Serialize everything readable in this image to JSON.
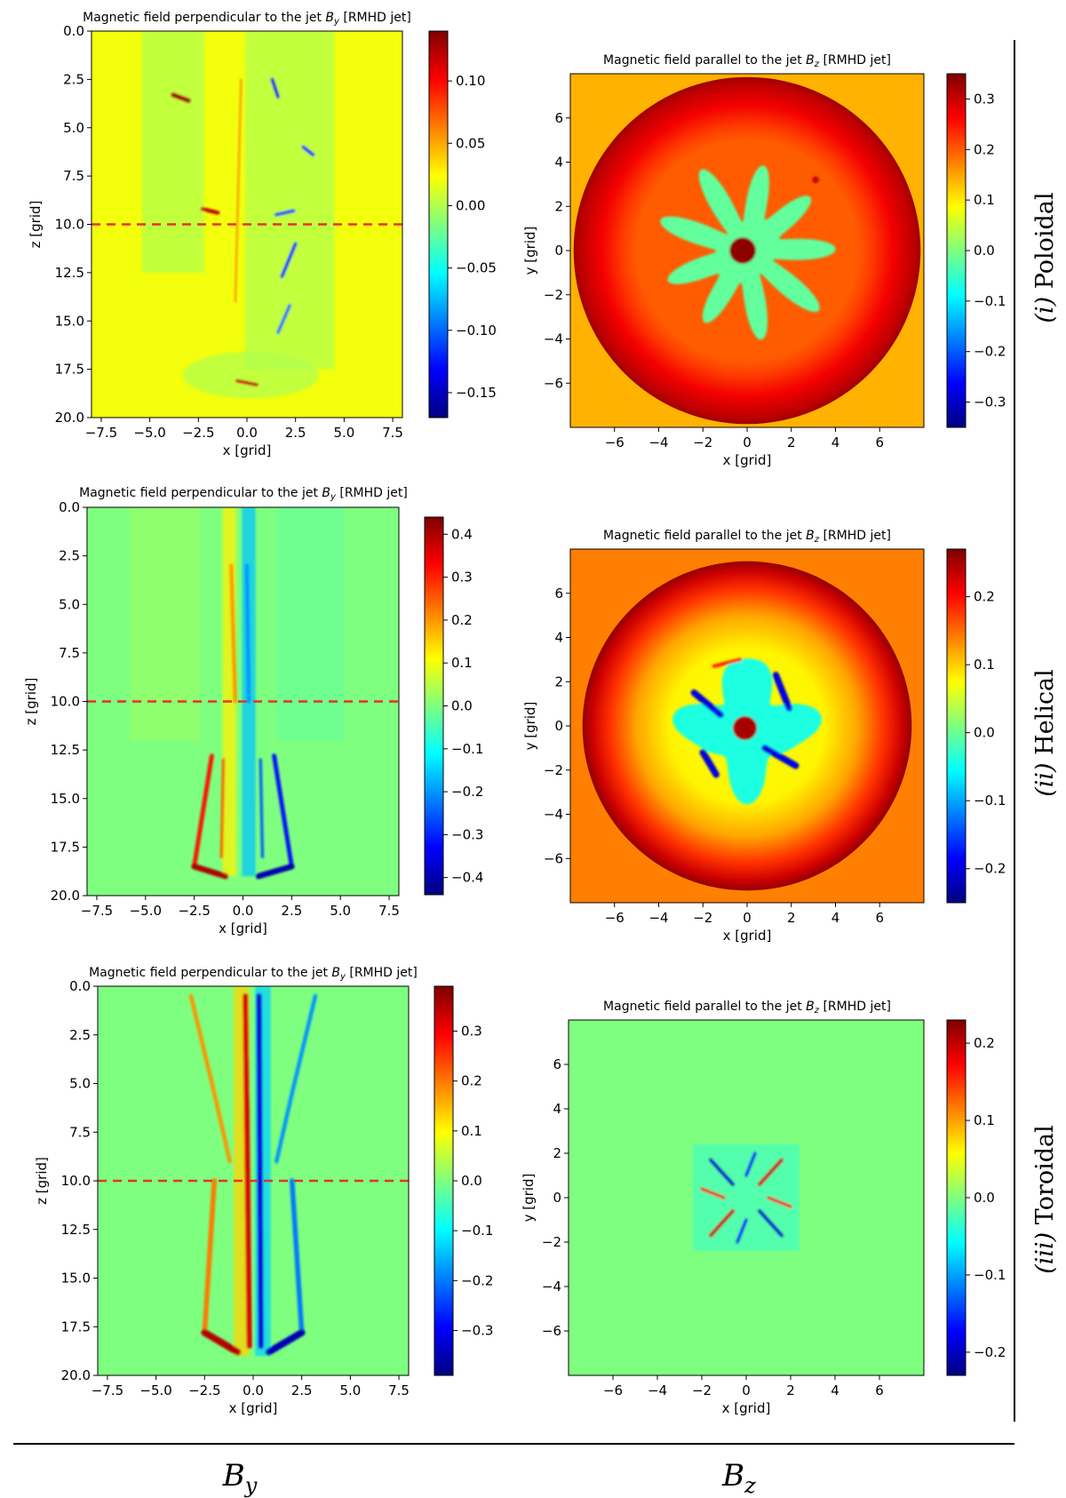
{
  "colors": {
    "jet": [
      "#00007f",
      "#0000ff",
      "#007fff",
      "#00ffff",
      "#7fff7f",
      "#ffff00",
      "#ff7f00",
      "#ff0000",
      "#7f0000"
    ],
    "cut_line": "#e8302a"
  },
  "row_labels": [
    {
      "numeral": "(i)",
      "name": " Poloidal"
    },
    {
      "numeral": "(ii)",
      "name": " Helical"
    },
    {
      "numeral": "(iii)",
      "name": " Toroidal"
    }
  ],
  "column_labels": {
    "by": {
      "main": "B",
      "sub": "y"
    },
    "bz": {
      "main": "B",
      "sub": "z"
    }
  },
  "chart_data": [
    {
      "id": "by-poloidal",
      "type": "heatmap",
      "title_prefix": "Magnetic field perpendicular to the jet ",
      "title_var": "B",
      "title_sub": "y",
      "title_suffix": " [RMHD jet]",
      "xlabel": "x [grid]",
      "ylabel": "z [grid]",
      "xlim": [
        -8,
        8
      ],
      "ylim": [
        0,
        20
      ],
      "y_inverted": true,
      "xticks": [
        "−7.5",
        "−5.0",
        "−2.5",
        "0.0",
        "2.5",
        "5.0",
        "7.5"
      ],
      "xtick_values": [
        -7.5,
        -5.0,
        -2.5,
        0.0,
        2.5,
        5.0,
        7.5
      ],
      "yticks": [
        "0.0",
        "2.5",
        "5.0",
        "7.5",
        "10.0",
        "12.5",
        "15.0",
        "17.5",
        "20.0"
      ],
      "ytick_values": [
        0,
        2.5,
        5,
        7.5,
        10,
        12.5,
        15,
        17.5,
        20
      ],
      "cut_z": 10.0,
      "colorbar": {
        "min": -0.17,
        "max": 0.14,
        "ticks": [
          "0.10",
          "0.05",
          "0.00",
          "−0.05",
          "−0.10",
          "−0.15"
        ],
        "tick_values": [
          0.1,
          0.05,
          0.0,
          -0.05,
          -0.1,
          -0.15
        ]
      },
      "background_value": 0.02,
      "features": [
        {
          "shape": "band",
          "x_center": -3.8,
          "x_width": 3.2,
          "z_start": 0,
          "z_end": 12.5,
          "value": 0.0
        },
        {
          "shape": "band",
          "x_center": 2.2,
          "x_width": 4.6,
          "z_start": 0,
          "z_end": 17.5,
          "value": 0.0
        },
        {
          "shape": "ellipse",
          "x": 0.2,
          "z": 17.8,
          "rx": 3.5,
          "rz": 1.2,
          "value": 0.0
        },
        {
          "shape": "streak",
          "x1": -3.8,
          "z1": 3.3,
          "x2": -3.0,
          "z2": 3.6,
          "width": 0.25,
          "value": 0.13
        },
        {
          "shape": "streak",
          "x1": 1.3,
          "z1": 2.5,
          "x2": 1.6,
          "z2": 3.4,
          "width": 0.18,
          "value": -0.14
        },
        {
          "shape": "streak",
          "x1": 2.9,
          "z1": 6.0,
          "x2": 3.4,
          "z2": 6.4,
          "width": 0.18,
          "value": -0.12
        },
        {
          "shape": "streak",
          "x1": -2.3,
          "z1": 9.2,
          "x2": -1.5,
          "z2": 9.4,
          "width": 0.2,
          "value": 0.12
        },
        {
          "shape": "streak",
          "x1": 1.5,
          "z1": 9.5,
          "x2": 2.4,
          "z2": 9.3,
          "width": 0.18,
          "value": -0.11
        },
        {
          "shape": "streak",
          "x1": 2.5,
          "z1": 11.0,
          "x2": 1.8,
          "z2": 12.7,
          "width": 0.18,
          "value": -0.12
        },
        {
          "shape": "streak",
          "x1": 2.2,
          "z1": 14.2,
          "x2": 1.6,
          "z2": 15.6,
          "width": 0.16,
          "value": -0.1
        },
        {
          "shape": "streak",
          "x1": -0.5,
          "z1": 18.1,
          "x2": 0.5,
          "z2": 18.3,
          "width": 0.18,
          "value": 0.12
        },
        {
          "shape": "streak",
          "x1": -0.3,
          "z1": 2.5,
          "x2": -0.6,
          "z2": 14.0,
          "width": 0.08,
          "value": 0.06
        }
      ]
    },
    {
      "id": "bz-poloidal",
      "type": "heatmap",
      "title_prefix": "Magnetic field parallel to the jet ",
      "title_var": "B",
      "title_sub": "z",
      "title_suffix": " [RMHD jet]",
      "xlabel": "x [grid]",
      "ylabel": "y [grid]",
      "xlim": [
        -8,
        8
      ],
      "ylim": [
        -8,
        8
      ],
      "y_inverted": false,
      "xticks": [
        "−6",
        "−4",
        "−2",
        "0",
        "2",
        "4",
        "6"
      ],
      "xtick_values": [
        -6,
        -4,
        -2,
        0,
        2,
        4,
        6
      ],
      "yticks": [
        "6",
        "4",
        "2",
        "0",
        "−2",
        "−4",
        "−6"
      ],
      "ytick_values": [
        6,
        4,
        2,
        0,
        -2,
        -4,
        -6
      ],
      "colorbar": {
        "min": -0.35,
        "max": 0.35,
        "ticks": [
          "0.3",
          "0.2",
          "0.1",
          "0.0",
          "−0.1",
          "−0.2",
          "−0.3"
        ],
        "tick_values": [
          0.3,
          0.2,
          0.1,
          0.0,
          -0.1,
          -0.2,
          -0.3
        ]
      },
      "background_value": 0.14,
      "radial_profile": [
        {
          "r": 0.0,
          "value": 0.2
        },
        {
          "r": 5.0,
          "value": 0.2
        },
        {
          "r": 5.6,
          "value": 0.22
        },
        {
          "r": 6.6,
          "value": 0.27
        },
        {
          "r": 7.6,
          "value": 0.31
        },
        {
          "r": 7.85,
          "value": 0.33
        }
      ],
      "features": [
        {
          "shape": "lobed",
          "x": 0.0,
          "y": 0.0,
          "r": 4.0,
          "lobes": 9,
          "amp": 0.65,
          "value": -0.02
        },
        {
          "shape": "circle",
          "x": -0.2,
          "y": 0.0,
          "r": 0.6,
          "value": 0.34
        },
        {
          "shape": "circle",
          "x": 3.1,
          "y": 3.2,
          "r": 0.15,
          "value": 0.3
        }
      ]
    },
    {
      "id": "by-helical",
      "type": "heatmap",
      "title_prefix": "Magnetic field perpendicular to the jet ",
      "title_var": "B",
      "title_sub": "y",
      "title_suffix": " [RMHD jet]",
      "xlabel": "x [grid]",
      "ylabel": "z [grid]",
      "xlim": [
        -8,
        8
      ],
      "ylim": [
        0,
        20
      ],
      "y_inverted": true,
      "xticks": [
        "−7.5",
        "−5.0",
        "−2.5",
        "0.0",
        "2.5",
        "5.0",
        "7.5"
      ],
      "xtick_values": [
        -7.5,
        -5.0,
        -2.5,
        0.0,
        2.5,
        5.0,
        7.5
      ],
      "yticks": [
        "0.0",
        "2.5",
        "5.0",
        "7.5",
        "10.0",
        "12.5",
        "15.0",
        "17.5",
        "20.0"
      ],
      "ytick_values": [
        0,
        2.5,
        5,
        7.5,
        10,
        12.5,
        15,
        17.5,
        20
      ],
      "cut_z": 10.0,
      "colorbar": {
        "min": -0.44,
        "max": 0.44,
        "ticks": [
          "0.4",
          "0.3",
          "0.2",
          "0.1",
          "0.0",
          "−0.1",
          "−0.2",
          "−0.3",
          "−0.4"
        ],
        "tick_values": [
          0.4,
          0.3,
          0.2,
          0.1,
          0.0,
          -0.1,
          -0.2,
          -0.3,
          -0.4
        ]
      },
      "background_value": 0.0,
      "features": [
        {
          "shape": "band",
          "x_center": -4.0,
          "x_width": 3.5,
          "z_start": 0,
          "z_end": 12.0,
          "value": 0.02
        },
        {
          "shape": "band",
          "x_center": 3.5,
          "x_width": 3.5,
          "z_start": 0,
          "z_end": 12.0,
          "value": -0.02
        },
        {
          "shape": "band",
          "x_center": -0.7,
          "x_width": 0.7,
          "z_start": 0,
          "z_end": 19.0,
          "value": 0.12
        },
        {
          "shape": "band",
          "x_center": 0.3,
          "x_width": 0.7,
          "z_start": 0,
          "z_end": 19.0,
          "value": -0.16
        },
        {
          "shape": "streak",
          "x1": -0.6,
          "z1": 3.0,
          "x2": -0.4,
          "z2": 10.0,
          "width": 0.2,
          "value": 0.2
        },
        {
          "shape": "streak",
          "x1": 0.2,
          "z1": 3.0,
          "x2": 0.3,
          "z2": 10.0,
          "width": 0.2,
          "value": -0.2
        },
        {
          "shape": "streak",
          "x1": -1.6,
          "z1": 12.8,
          "x2": -2.5,
          "z2": 18.5,
          "width": 0.22,
          "value": 0.32
        },
        {
          "shape": "streak",
          "x1": -2.5,
          "z1": 18.5,
          "x2": -0.9,
          "z2": 19.0,
          "width": 0.3,
          "value": 0.4
        },
        {
          "shape": "streak",
          "x1": -1.0,
          "z1": 13.0,
          "x2": -1.1,
          "z2": 18.0,
          "width": 0.15,
          "value": 0.25
        },
        {
          "shape": "streak",
          "x1": 1.6,
          "z1": 12.8,
          "x2": 2.5,
          "z2": 18.5,
          "width": 0.22,
          "value": -0.32
        },
        {
          "shape": "streak",
          "x1": 2.5,
          "z1": 18.5,
          "x2": 0.8,
          "z2": 19.0,
          "width": 0.3,
          "value": -0.4
        },
        {
          "shape": "streak",
          "x1": 0.9,
          "z1": 13.0,
          "x2": 1.0,
          "z2": 18.0,
          "width": 0.15,
          "value": -0.25
        }
      ]
    },
    {
      "id": "bz-helical",
      "type": "heatmap",
      "title_prefix": "Magnetic field parallel to the jet ",
      "title_var": "B",
      "title_sub": "z",
      "title_suffix": " [RMHD jet]",
      "xlabel": "x [grid]",
      "ylabel": "y [grid]",
      "xlim": [
        -8,
        8
      ],
      "ylim": [
        -8,
        8
      ],
      "y_inverted": false,
      "xticks": [
        "−6",
        "−4",
        "−2",
        "0",
        "2",
        "4",
        "6"
      ],
      "xtick_values": [
        -6,
        -4,
        -2,
        0,
        2,
        4,
        6
      ],
      "yticks": [
        "6",
        "4",
        "2",
        "0",
        "−2",
        "−4",
        "−6"
      ],
      "ytick_values": [
        6,
        4,
        2,
        0,
        -2,
        -4,
        -6
      ],
      "colorbar": {
        "min": -0.25,
        "max": 0.27,
        "ticks": [
          "0.2",
          "0.1",
          "0.0",
          "−0.1",
          "−0.2"
        ],
        "tick_values": [
          0.2,
          0.1,
          0.0,
          -0.1,
          -0.2
        ]
      },
      "background_value": 0.14,
      "radial_profile": [
        {
          "r": 0.0,
          "value": 0.07
        },
        {
          "r": 3.5,
          "value": 0.08
        },
        {
          "r": 5.0,
          "value": 0.12
        },
        {
          "r": 6.2,
          "value": 0.18
        },
        {
          "r": 7.0,
          "value": 0.23
        },
        {
          "r": 7.45,
          "value": 0.26
        }
      ],
      "features": [
        {
          "shape": "lobed",
          "x": 0.0,
          "y": 0.0,
          "r": 3.3,
          "lobes": 4,
          "amp": 0.5,
          "value": -0.04
        },
        {
          "shape": "streak",
          "x1": -2.4,
          "y1": 1.5,
          "x2": -1.2,
          "y2": 0.5,
          "width": 0.3,
          "value": -0.2
        },
        {
          "shape": "streak",
          "x1": 1.3,
          "y1": 2.3,
          "x2": 1.9,
          "y2": 0.8,
          "width": 0.3,
          "value": -0.2
        },
        {
          "shape": "streak",
          "x1": 0.8,
          "y1": -1.0,
          "x2": 2.2,
          "y2": -1.8,
          "width": 0.3,
          "value": -0.2
        },
        {
          "shape": "streak",
          "x1": -2.0,
          "y1": -1.2,
          "x2": -1.4,
          "y2": -2.2,
          "width": 0.3,
          "value": -0.2
        },
        {
          "shape": "streak",
          "x1": -1.5,
          "y1": 2.7,
          "x2": -0.3,
          "y2": 3.0,
          "width": 0.15,
          "value": 0.2
        },
        {
          "shape": "circle",
          "x": -0.1,
          "y": -0.1,
          "r": 0.55,
          "value": 0.25
        }
      ]
    },
    {
      "id": "by-toroidal",
      "type": "heatmap",
      "title_prefix": "Magnetic field perpendicular to the jet ",
      "title_var": "B",
      "title_sub": "y",
      "title_suffix": " [RMHD jet]",
      "xlabel": "x [grid]",
      "ylabel": "z [grid]",
      "xlim": [
        -8,
        8
      ],
      "ylim": [
        0,
        20
      ],
      "y_inverted": true,
      "xticks": [
        "−7.5",
        "−5.0",
        "−2.5",
        "0.0",
        "2.5",
        "5.0",
        "7.5"
      ],
      "xtick_values": [
        -7.5,
        -5.0,
        -2.5,
        0.0,
        2.5,
        5.0,
        7.5
      ],
      "yticks": [
        "0.0",
        "2.5",
        "5.0",
        "7.5",
        "10.0",
        "12.5",
        "15.0",
        "17.5",
        "20.0"
      ],
      "ytick_values": [
        0,
        2.5,
        5,
        7.5,
        10,
        12.5,
        15,
        17.5,
        20
      ],
      "cut_z": 10.0,
      "colorbar": {
        "min": -0.39,
        "max": 0.39,
        "ticks": [
          "0.3",
          "0.2",
          "0.1",
          "0.0",
          "−0.1",
          "−0.2",
          "−0.3"
        ],
        "tick_values": [
          0.3,
          0.2,
          0.1,
          0.0,
          -0.1,
          -0.2,
          -0.3
        ]
      },
      "background_value": 0.0,
      "features": [
        {
          "shape": "band",
          "x_center": -0.6,
          "x_width": 0.8,
          "z_start": 0,
          "z_end": 19.0,
          "value": 0.13
        },
        {
          "shape": "band",
          "x_center": 0.5,
          "x_width": 0.8,
          "z_start": 0,
          "z_end": 19.0,
          "value": -0.13
        },
        {
          "shape": "streak",
          "x1": -0.4,
          "z1": 0.5,
          "x2": -0.2,
          "z2": 18.5,
          "width": 0.28,
          "value": 0.32
        },
        {
          "shape": "streak",
          "x1": 0.3,
          "z1": 0.5,
          "x2": 0.4,
          "z2": 18.5,
          "width": 0.28,
          "value": -0.32
        },
        {
          "shape": "streak",
          "x1": -3.2,
          "z1": 0.5,
          "x2": -2.0,
          "z2": 5.5,
          "width": 0.2,
          "value": 0.18
        },
        {
          "shape": "streak",
          "x1": -2.0,
          "z1": 5.5,
          "x2": -1.2,
          "z2": 9.0,
          "width": 0.2,
          "value": 0.18
        },
        {
          "shape": "streak",
          "x1": -2.0,
          "z1": 10.0,
          "x2": -2.5,
          "z2": 17.8,
          "width": 0.25,
          "value": 0.2
        },
        {
          "shape": "streak",
          "x1": -2.5,
          "z1": 17.8,
          "x2": -0.8,
          "z2": 18.8,
          "width": 0.35,
          "value": 0.35
        },
        {
          "shape": "streak",
          "x1": 3.2,
          "z1": 0.5,
          "x2": 2.0,
          "z2": 5.5,
          "width": 0.2,
          "value": -0.18
        },
        {
          "shape": "streak",
          "x1": 2.0,
          "z1": 5.5,
          "x2": 1.2,
          "z2": 9.0,
          "width": 0.2,
          "value": -0.18
        },
        {
          "shape": "streak",
          "x1": 2.0,
          "z1": 10.0,
          "x2": 2.5,
          "z2": 17.8,
          "width": 0.25,
          "value": -0.2
        },
        {
          "shape": "streak",
          "x1": 2.5,
          "z1": 17.8,
          "x2": 0.8,
          "z2": 18.8,
          "width": 0.35,
          "value": -0.35
        }
      ]
    },
    {
      "id": "bz-toroidal",
      "type": "heatmap",
      "title_prefix": "Magnetic field parallel to the jet ",
      "title_var": "B",
      "title_sub": "z",
      "title_suffix": " [RMHD jet]",
      "xlabel": "x [grid]",
      "ylabel": "y [grid]",
      "xlim": [
        -8,
        8
      ],
      "ylim": [
        -8,
        8
      ],
      "y_inverted": false,
      "xticks": [
        "−6",
        "−4",
        "−2",
        "0",
        "2",
        "4",
        "6"
      ],
      "xtick_values": [
        -6,
        -4,
        -2,
        0,
        2,
        4,
        6
      ],
      "yticks": [
        "6",
        "4",
        "2",
        "0",
        "−2",
        "−4",
        "−6"
      ],
      "ytick_values": [
        6,
        4,
        2,
        0,
        -2,
        -4,
        -6
      ],
      "colorbar": {
        "min": -0.23,
        "max": 0.23,
        "ticks": [
          "0.2",
          "0.1",
          "0.0",
          "−0.1",
          "−0.2"
        ],
        "tick_values": [
          0.2,
          0.1,
          0.0,
          -0.1,
          -0.2
        ]
      },
      "background_value": 0.0,
      "features": [
        {
          "shape": "square",
          "x": 0.0,
          "y": 0.0,
          "half": 2.4,
          "value": -0.02
        },
        {
          "shape": "streak",
          "x1": -1.6,
          "y1": 1.7,
          "x2": -0.6,
          "y2": 0.6,
          "width": 0.18,
          "value": -0.2
        },
        {
          "shape": "streak",
          "x1": 1.6,
          "y1": 1.7,
          "x2": 0.6,
          "y2": 0.6,
          "width": 0.18,
          "value": 0.2
        },
        {
          "shape": "streak",
          "x1": -1.6,
          "y1": -1.7,
          "x2": -0.6,
          "y2": -0.6,
          "width": 0.18,
          "value": 0.2
        },
        {
          "shape": "streak",
          "x1": 1.6,
          "y1": -1.7,
          "x2": 0.6,
          "y2": -0.6,
          "width": 0.18,
          "value": -0.2
        },
        {
          "shape": "streak",
          "x1": -2.0,
          "y1": 0.4,
          "x2": -1.0,
          "y2": 0.0,
          "width": 0.15,
          "value": 0.18
        },
        {
          "shape": "streak",
          "x1": 1.0,
          "y1": 0.0,
          "x2": 2.0,
          "y2": -0.4,
          "width": 0.15,
          "value": 0.18
        },
        {
          "shape": "streak",
          "x1": 0.0,
          "y1": 1.0,
          "x2": 0.4,
          "y2": 2.0,
          "width": 0.15,
          "value": -0.18
        },
        {
          "shape": "streak",
          "x1": 0.0,
          "y1": -1.0,
          "x2": -0.4,
          "y2": -2.0,
          "width": 0.15,
          "value": -0.18
        }
      ]
    }
  ]
}
